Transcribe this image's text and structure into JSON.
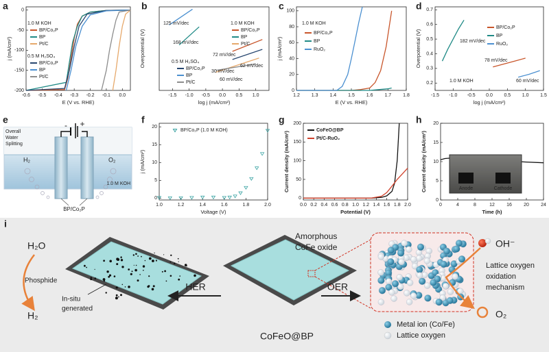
{
  "chart_data": [
    {
      "label": "a",
      "type": "line",
      "xlabel": "E (V vs. RHE)",
      "ylabel": "j (mA/cm²)",
      "xlim": [
        -0.6,
        0.05
      ],
      "ylim": [
        -200,
        8
      ],
      "xticks": [
        -0.6,
        -0.5,
        -0.4,
        -0.3,
        -0.2,
        -0.1,
        {
          "value": 0,
          "label": "0.0"
        }
      ],
      "yticks": [
        0,
        -50,
        -100,
        -150,
        -200
      ],
      "annotations": [
        "1.0 M KOH",
        "0.5 M H₂SO₄"
      ],
      "series": [
        {
          "name": "BP/Co₂P",
          "color": "#c8552a",
          "x": [
            -0.6,
            -0.36,
            -0.34,
            -0.32,
            -0.3,
            -0.28,
            -0.25,
            -0.2,
            -0.1,
            0.05
          ],
          "values": [
            -200,
            -198,
            -170,
            -120,
            -70,
            -35,
            -15,
            -5,
            -1,
            0
          ]
        },
        {
          "name": "BP",
          "color": "#1f8a86",
          "x": [
            -0.6,
            -0.35,
            -0.33,
            -0.31,
            -0.28,
            -0.25,
            -0.2,
            -0.1,
            0.05
          ],
          "values": [
            -200,
            -180,
            -130,
            -80,
            -40,
            -15,
            -5,
            -1,
            0
          ]
        },
        {
          "name": "Pt/C",
          "color": "#e6a86a",
          "x": [
            -0.06,
            -0.04,
            -0.02,
            0,
            0.02,
            0.05
          ],
          "values": [
            -200,
            -150,
            -90,
            -40,
            -10,
            0
          ]
        },
        {
          "name": "BP/Co₂P",
          "color": "#27466f",
          "x": [
            -0.6,
            -0.36,
            -0.33,
            -0.3,
            -0.27,
            -0.22,
            -0.1,
            0.05
          ],
          "values": [
            -200,
            -195,
            -150,
            -90,
            -40,
            -10,
            -1,
            0
          ]
        },
        {
          "name": "BP",
          "color": "#4a8fd0",
          "x": [
            -0.35,
            -0.32,
            -0.29,
            -0.25,
            -0.2,
            -0.1,
            0.05
          ],
          "values": [
            -200,
            -150,
            -90,
            -40,
            -12,
            -2,
            0
          ]
        },
        {
          "name": "Pt/C",
          "color": "#8c8c8c",
          "x": [
            -0.13,
            -0.1,
            -0.08,
            -0.06,
            -0.04,
            -0.02,
            0.05
          ],
          "values": [
            -200,
            -150,
            -100,
            -60,
            -25,
            -5,
            0
          ]
        }
      ]
    },
    {
      "label": "b",
      "type": "line",
      "xlabel": "log j (mA/cm²)",
      "ylabel": "Overpotential (V)",
      "xlim": [
        -1.9,
        1.4
      ],
      "ylim": [
        0,
        0.46
      ],
      "xticks": [
        -1.5,
        {
          "value": -1,
          "label": "-1.0"
        },
        -0.5,
        {
          "value": 0,
          "label": "0.0"
        },
        0.5,
        {
          "value": 1,
          "label": "1.0"
        }
      ],
      "annotations": [
        "1.0 M KOH",
        "0.5 M H₂SO₄",
        "125 mV/dec",
        "168 mV/dec",
        "72 mV/dec",
        "62 mV/dec",
        "30 mV/dec",
        "60 mV/dec"
      ],
      "series": [
        {
          "name": "BP/Co₂P",
          "color": "#c8552a",
          "x": [
            0.3,
            1.2
          ],
          "values": [
            0.215,
            0.28
          ]
        },
        {
          "name": "BP",
          "color": "#1f8a86",
          "x": [
            -1.3,
            -0.7
          ],
          "values": [
            0.25,
            0.35
          ]
        },
        {
          "name": "Pt/C",
          "color": "#e6a86a",
          "x": [
            -0.2,
            1.1
          ],
          "values": [
            0.1,
            0.178
          ]
        },
        {
          "name": "BP/Co₂P",
          "color": "#27466f",
          "x": [
            0.3,
            1.2
          ],
          "values": [
            0.17,
            0.226
          ]
        },
        {
          "name": "BP",
          "color": "#4a8fd0",
          "x": [
            -1.6,
            -0.9
          ],
          "values": [
            0.36,
            0.447
          ]
        },
        {
          "name": "Pt/C",
          "color": "#8c8c8c",
          "x": [
            -0.2,
            1.0
          ],
          "values": [
            0.11,
            0.146
          ]
        }
      ]
    },
    {
      "label": "c",
      "type": "line",
      "xlabel": "E (V vs. RHE)",
      "ylabel": "j (mA/cm²)",
      "xlim": [
        1.2,
        1.8
      ],
      "ylim": [
        0,
        105
      ],
      "xticks": [
        1.2,
        1.3,
        1.4,
        1.5,
        1.6,
        1.7,
        1.8
      ],
      "yticks": [
        0,
        20,
        40,
        60,
        80,
        100
      ],
      "annotations": [
        "1.0 M KOH"
      ],
      "series": [
        {
          "name": "BP/Co₂P",
          "color": "#c8552a",
          "x": [
            1.2,
            1.5,
            1.55,
            1.6,
            1.63,
            1.66,
            1.69,
            1.72
          ],
          "values": [
            0,
            0,
            1,
            3,
            10,
            25,
            55,
            100
          ]
        },
        {
          "name": "BP",
          "color": "#1f8a86",
          "x": [
            1.2,
            1.6,
            1.65,
            1.7,
            1.72
          ],
          "values": [
            0,
            0,
            1,
            2,
            3
          ]
        },
        {
          "name": "RuO₂",
          "color": "#4a8fd0",
          "x": [
            1.2,
            1.42,
            1.45,
            1.48,
            1.5,
            1.52,
            1.54,
            1.56
          ],
          "values": [
            0,
            0,
            5,
            20,
            40,
            62,
            85,
            105
          ]
        }
      ]
    },
    {
      "label": "d",
      "type": "line",
      "xlabel": "log j (mA/cm²)",
      "ylabel": "Overpotential (V)",
      "xlim": [
        -1.5,
        1.5
      ],
      "ylim": [
        0.15,
        0.72
      ],
      "xticks": [
        -1.5,
        {
          "value": -1,
          "label": "-1.0"
        },
        -0.5,
        {
          "value": 0,
          "label": "0.0"
        },
        0.5,
        {
          "value": 1,
          "label": "1.0"
        },
        1.5
      ],
      "yticks": [
        0.2,
        0.3,
        0.4,
        0.5,
        0.6,
        0.7
      ],
      "annotations": [
        "182 mV/dec",
        "78 mV/dec",
        "60 mV/dec",
        "1.0 M KOH"
      ],
      "series": [
        {
          "name": "BP/Co₂P",
          "color": "#c8552a",
          "x": [
            0.1,
            0.4,
            0.7,
            1.0
          ],
          "values": [
            0.31,
            0.33,
            0.35,
            0.37
          ]
        },
        {
          "name": "BP",
          "color": "#1f8a86",
          "x": [
            -1.3,
            -1.15,
            -1.0,
            -0.85,
            -0.7
          ],
          "values": [
            0.35,
            0.43,
            0.5,
            0.57,
            0.63
          ]
        },
        {
          "name": "RuO₂",
          "color": "#4a8fd0",
          "x": [
            0.8,
            1.1,
            1.4
          ],
          "values": [
            0.24,
            0.26,
            0.285
          ]
        }
      ]
    },
    {
      "label": "f",
      "type": "scatter",
      "xlabel": "Voltage (V)",
      "ylabel": "j (mA/cm²)",
      "xlim": [
        1.0,
        2.0
      ],
      "ylim": [
        -0.5,
        21
      ],
      "xticks": [
        {
          "value": 1,
          "label": "1.0"
        },
        1.2,
        1.4,
        1.6,
        1.8,
        {
          "value": 2,
          "label": "2.0"
        }
      ],
      "yticks": [
        0,
        5,
        10,
        15,
        20
      ],
      "series": [
        {
          "name": "BP/Co₂P (1.0 M KOH)",
          "color": "#3aa3a3",
          "x": [
            1.0,
            1.1,
            1.2,
            1.3,
            1.4,
            1.5,
            1.6,
            1.65,
            1.7,
            1.75,
            1.8,
            1.85,
            1.9,
            1.95,
            2.0
          ],
          "values": [
            0.2,
            0.1,
            0.1,
            0.2,
            0.3,
            0.3,
            0.2,
            0.3,
            0.6,
            1.5,
            3,
            5.5,
            8.5,
            12.5,
            19
          ]
        }
      ]
    },
    {
      "label": "g",
      "type": "line",
      "xlabel": "Potential (V)",
      "ylabel": "Current density (mA/cm²)",
      "xlim": [
        0,
        2
      ],
      "ylim": [
        -5,
        200
      ],
      "xticks": [
        {
          "value": 0,
          "label": "0.0"
        },
        0.2,
        0.4,
        0.6,
        0.8,
        {
          "value": 1,
          "label": "1.0"
        },
        1.2,
        1.4,
        1.6,
        1.8,
        {
          "value": 2,
          "label": "2.0"
        }
      ],
      "yticks": [
        0,
        50,
        100,
        150,
        200
      ],
      "series": [
        {
          "name": "CoFeO@BP",
          "color": "#111111",
          "x": [
            0,
            1.3,
            1.5,
            1.6,
            1.7,
            1.75,
            1.8,
            1.84
          ],
          "values": [
            0,
            0,
            2,
            6,
            18,
            40,
            100,
            200
          ]
        },
        {
          "name": "Pt/C-RuO₂",
          "color": "#d0402a",
          "x": [
            0,
            1.3,
            1.5,
            1.6,
            1.7,
            1.8,
            1.9,
            2.0
          ],
          "values": [
            0,
            0,
            5,
            15,
            32,
            50,
            65,
            80
          ]
        }
      ]
    },
    {
      "label": "h",
      "type": "line",
      "xlabel": "Time (h)",
      "ylabel": "Current density (mA/cm²)",
      "xlim": [
        0,
        24
      ],
      "ylim": [
        0,
        20
      ],
      "xticks": [
        0,
        4,
        8,
        12,
        16,
        20,
        24
      ],
      "yticks": [
        0,
        5,
        10,
        15,
        20
      ],
      "inset_labels": [
        "Anode",
        "Cathode"
      ],
      "series": [
        {
          "name": "CoFeO@BP",
          "color": "#111111",
          "x": [
            0,
            1,
            2,
            4,
            8,
            12,
            16,
            20,
            24
          ],
          "values": [
            10.5,
            10.8,
            10.9,
            10.8,
            10.5,
            10.3,
            10.1,
            9.9,
            9.7
          ]
        }
      ]
    }
  ],
  "panel_e": {
    "label": "e",
    "caption": [
      "Overall",
      "Water",
      "Splitting"
    ],
    "minus": "-",
    "plus": "+",
    "gas_left": "H₂",
    "gas_right": "O₂",
    "electrolyte": "1.0 M KOH",
    "electrode": "BP/Co₂P"
  },
  "panel_i": {
    "label": "i",
    "h2o": "H₂O",
    "phosphide": "Phosphide",
    "h2": "H₂",
    "insitu": [
      "In-situ",
      "generated"
    ],
    "her": "HER",
    "catalyst": "CoFeO@BP",
    "oer": "OER",
    "amorphous": [
      "Amorphous",
      "CoFe oxide"
    ],
    "oh": "OH⁻",
    "mechanism": [
      "Lattice oxygen",
      "oxidation",
      "mechanism"
    ],
    "o2": "O₂",
    "legend": [
      "Metal ion (Co/Fe)",
      "Lattice oxygen"
    ]
  }
}
